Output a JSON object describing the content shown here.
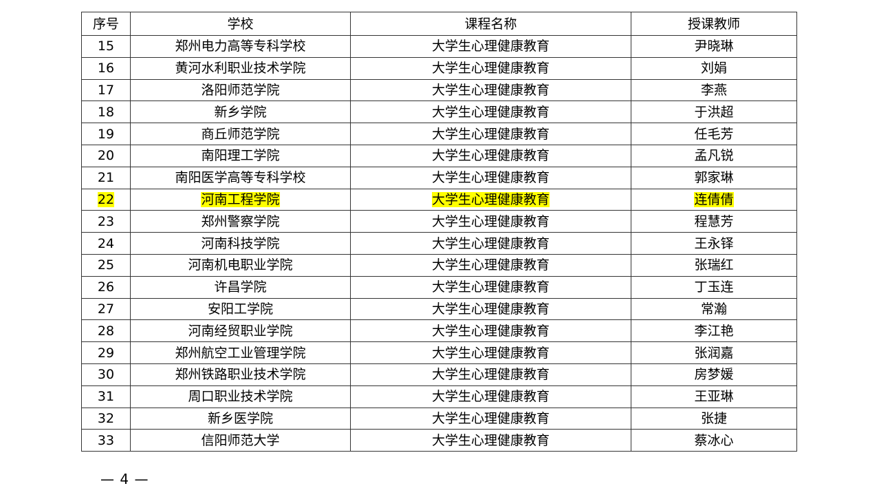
{
  "table": {
    "headers": [
      "序号",
      "学校",
      "课程名称",
      "授课教师"
    ],
    "rows": [
      [
        "15",
        "郑州电力高等专科学校",
        "大学生心理健康教育",
        "尹晓琳"
      ],
      [
        "16",
        "黄河水利职业技术学院",
        "大学生心理健康教育",
        "刘娟"
      ],
      [
        "17",
        "洛阳师范学院",
        "大学生心理健康教育",
        "李燕"
      ],
      [
        "18",
        "新乡学院",
        "大学生心理健康教育",
        "于洪超"
      ],
      [
        "19",
        "商丘师范学院",
        "大学生心理健康教育",
        "任毛芳"
      ],
      [
        "20",
        "南阳理工学院",
        "大学生心理健康教育",
        "孟凡锐"
      ],
      [
        "21",
        "南阳医学高等专科学校",
        "大学生心理健康教育",
        "郭家琳"
      ],
      [
        "22",
        "河南工程学院",
        "大学生心理健康教育",
        "连倩倩"
      ],
      [
        "23",
        "郑州警察学院",
        "大学生心理健康教育",
        "程慧芳"
      ],
      [
        "24",
        "河南科技学院",
        "大学生心理健康教育",
        "王永铎"
      ],
      [
        "25",
        "河南机电职业学院",
        "大学生心理健康教育",
        "张瑞红"
      ],
      [
        "26",
        "许昌学院",
        "大学生心理健康教育",
        "丁玉连"
      ],
      [
        "27",
        "安阳工学院",
        "大学生心理健康教育",
        "常瀚"
      ],
      [
        "28",
        "河南经贸职业学院",
        "大学生心理健康教育",
        "李江艳"
      ],
      [
        "29",
        "郑州航空工业管理学院",
        "大学生心理健康教育",
        "张润嘉"
      ],
      [
        "30",
        "郑州铁路职业技术学院",
        "大学生心理健康教育",
        "房梦媛"
      ],
      [
        "31",
        "周口职业技术学院",
        "大学生心理健康教育",
        "王亚琳"
      ],
      [
        "32",
        "新乡医学院",
        "大学生心理健康教育",
        "张捷"
      ],
      [
        "33",
        "信阳师范大学",
        "大学生心理健康教育",
        "蔡冰心"
      ]
    ],
    "highlighted_row": "22",
    "highlight_color": "#ffff00"
  },
  "footer": {
    "page_number": "— 4 —"
  }
}
